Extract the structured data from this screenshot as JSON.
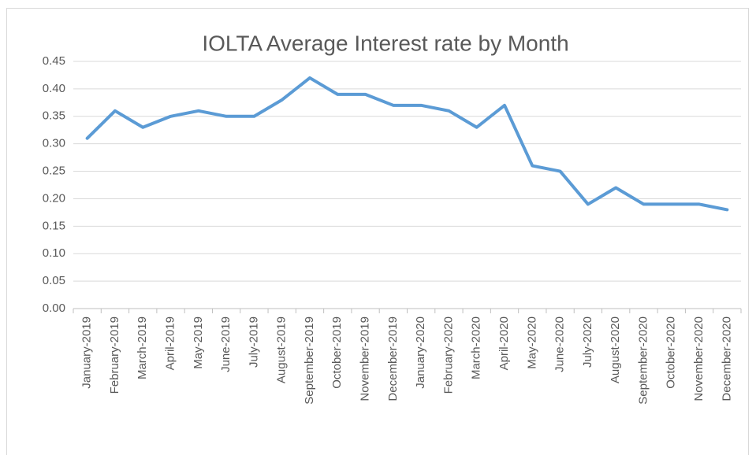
{
  "chart_data": {
    "type": "line",
    "title": "IOLTA Average Interest rate by Month",
    "categories": [
      "January-2019",
      "February-2019",
      "March-2019",
      "April-2019",
      "May-2019",
      "June-2019",
      "July-2019",
      "August-2019",
      "September-2019",
      "October-2019",
      "November-2019",
      "December-2019",
      "January-2020",
      "February-2020",
      "March-2020",
      "April-2020",
      "May-2020",
      "June-2020",
      "July-2020",
      "August-2020",
      "September-2020",
      "October-2020",
      "November-2020",
      "December-2020"
    ],
    "series": [
      {
        "color": "#5b9bd5",
        "values": [
          0.31,
          0.36,
          0.33,
          0.35,
          0.36,
          0.35,
          0.35,
          0.38,
          0.42,
          0.39,
          0.39,
          0.37,
          0.37,
          0.36,
          0.33,
          0.37,
          0.26,
          0.25,
          0.19,
          0.22,
          0.19,
          0.19,
          0.19,
          0.18
        ]
      }
    ],
    "ylim": [
      0,
      0.45
    ],
    "yticks": [
      {
        "value": 0,
        "label": "0.00"
      },
      0.05,
      {
        "value": 0.1,
        "label": "0.10"
      },
      0.15,
      {
        "value": 0.2,
        "label": "0.20"
      },
      0.25,
      {
        "value": 0.3,
        "label": "0.30"
      },
      0.35,
      {
        "value": 0.4,
        "label": "0.40"
      },
      0.45
    ],
    "grid": true
  }
}
